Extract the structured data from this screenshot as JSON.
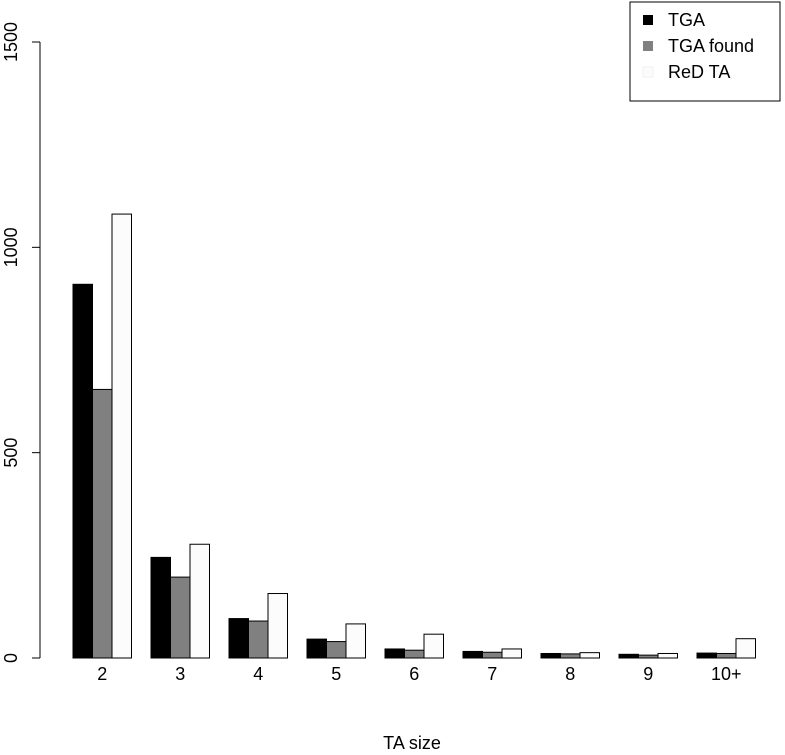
{
  "chart_data": {
    "type": "bar",
    "xlabel": "TA size",
    "ylabel": "",
    "categories": [
      "2",
      "3",
      "4",
      "5",
      "6",
      "7",
      "8",
      "9",
      "10+"
    ],
    "series": [
      {
        "name": "TGA",
        "color": "#000000",
        "values": [
          910,
          245,
          96,
          46,
          22,
          16,
          11,
          9,
          12
        ]
      },
      {
        "name": "TGA found",
        "color": "#808080",
        "values": [
          654,
          197,
          90,
          40,
          19,
          14,
          10,
          7,
          11
        ]
      },
      {
        "name": "ReD TA",
        "color": "#fcfcfc",
        "values": [
          1081,
          277,
          157,
          83,
          58,
          22,
          13,
          11,
          47
        ]
      }
    ],
    "yticks": [
      0,
      500,
      1000,
      1500
    ],
    "ylim": [
      0,
      1500
    ],
    "legend_position": "top-right",
    "grid": false
  }
}
